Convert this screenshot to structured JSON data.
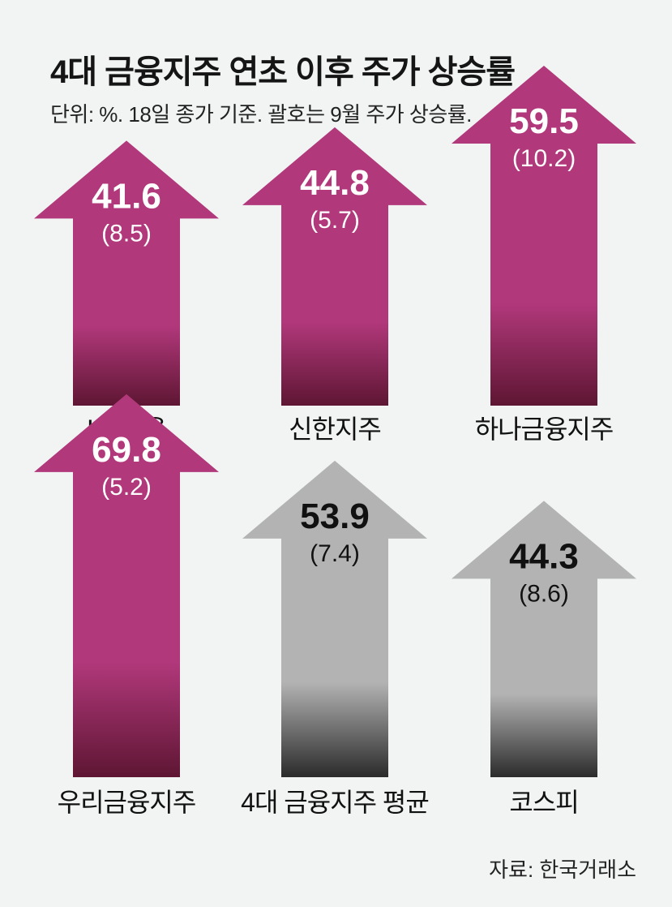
{
  "title": "4대 금융지주 연초 이후 주가 상승률",
  "subtitle": "단위: %. 18일 종가 기준. 괄호는 9월 주가 상승률.",
  "source": "자료: 한국거래소",
  "colors": {
    "background": "#f1f4f3",
    "financial_group": "#b1387b",
    "financial_group_dark": "#5e1633",
    "benchmark": "#b3b3b3",
    "benchmark_dark": "#2b2b2b"
  },
  "chart_data": {
    "type": "bar",
    "categories": [
      "KB금융",
      "신한지주",
      "하나금융지주",
      "우리금융지주",
      "4대 금융지주 평균",
      "코스피"
    ],
    "series": [
      {
        "values": [
          41.6,
          44.8,
          59.5,
          69.8,
          53.9,
          44.3
        ]
      },
      {
        "values": [
          8.5,
          5.7,
          10.2,
          5.2,
          7.4,
          8.6
        ]
      }
    ],
    "value_labels": [
      "41.6",
      "44.8",
      "59.5",
      "69.8",
      "53.9",
      "44.3"
    ],
    "september_labels": [
      "(8.5)",
      "(5.7)",
      "(10.2)",
      "(5.2)",
      "(7.4)",
      "(8.6)"
    ],
    "groups": [
      "financial",
      "financial",
      "financial",
      "financial",
      "benchmark",
      "benchmark"
    ],
    "mark": "upward-arrow"
  }
}
